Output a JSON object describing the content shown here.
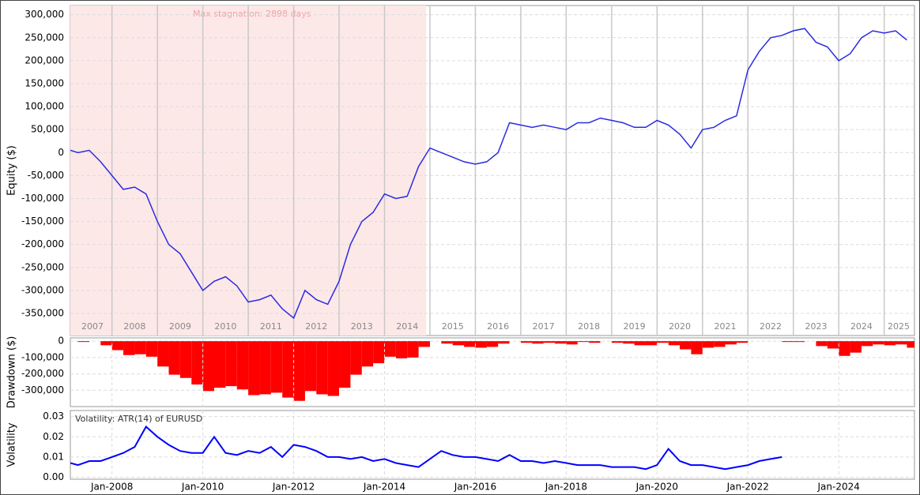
{
  "chart_data": [
    {
      "type": "line",
      "y_label": "Equity ($)",
      "color": "#2b2be0",
      "annotation": "Max stagnation: 2898 days",
      "stagnation_range": [
        "2007-02",
        "2014-12"
      ],
      "stagnation_color": "#fde8e8",
      "year_labels": [
        2007,
        2008,
        2009,
        2010,
        2011,
        2012,
        2013,
        2014,
        2015,
        2016,
        2017,
        2018,
        2019,
        2020,
        2021,
        2022,
        2023,
        2024,
        2025
      ],
      "xlim": [
        "2007-02",
        "2025-09"
      ],
      "ylim": [
        -398000,
        320000
      ],
      "grid": true,
      "yticks": [
        {
          "value": -350000,
          "label": "-350,000"
        },
        {
          "value": -300000,
          "label": "-300,000"
        },
        {
          "value": -250000,
          "label": "-250,000"
        },
        {
          "value": -200000,
          "label": "-200,000"
        },
        {
          "value": -150000,
          "label": "-150,000"
        },
        {
          "value": -100000,
          "label": "-100,000"
        },
        {
          "value": -50000,
          "label": "-50,000"
        },
        0,
        {
          "value": 50000,
          "label": "50,000"
        },
        {
          "value": 100000,
          "label": "100,000"
        },
        {
          "value": 150000,
          "label": "150,000"
        },
        {
          "value": 200000,
          "label": "200,000"
        },
        {
          "value": 250000,
          "label": "250,000"
        },
        {
          "value": 300000,
          "label": "300,000"
        }
      ],
      "x": [
        "2007-02",
        "2007-04",
        "2007-07",
        "2007-10",
        "2008-01",
        "2008-04",
        "2008-07",
        "2008-10",
        "2009-01",
        "2009-04",
        "2009-07",
        "2009-10",
        "2010-01",
        "2010-04",
        "2010-07",
        "2010-10",
        "2011-01",
        "2011-04",
        "2011-07",
        "2011-10",
        "2012-01",
        "2012-04",
        "2012-07",
        "2012-10",
        "2013-01",
        "2013-04",
        "2013-07",
        "2013-10",
        "2014-01",
        "2014-04",
        "2014-07",
        "2014-10",
        "2015-01",
        "2015-04",
        "2015-07",
        "2015-10",
        "2016-01",
        "2016-04",
        "2016-07",
        "2016-10",
        "2017-01",
        "2017-04",
        "2017-07",
        "2017-10",
        "2018-01",
        "2018-04",
        "2018-07",
        "2018-10",
        "2019-01",
        "2019-04",
        "2019-07",
        "2019-10",
        "2020-01",
        "2020-04",
        "2020-07",
        "2020-10",
        "2021-01",
        "2021-04",
        "2021-07",
        "2021-10",
        "2022-01",
        "2022-04",
        "2022-07",
        "2022-10",
        "2023-01",
        "2023-04",
        "2023-07",
        "2023-10",
        "2024-01",
        "2024-04",
        "2024-07",
        "2024-10",
        "2025-01",
        "2025-04",
        "2025-07"
      ],
      "values": [
        5000,
        0,
        5000,
        -20000,
        -50000,
        -80000,
        -75000,
        -90000,
        -150000,
        -200000,
        -220000,
        -260000,
        -300000,
        -280000,
        -270000,
        -290000,
        -325000,
        -320000,
        -310000,
        -340000,
        -360000,
        -300000,
        -320000,
        -330000,
        -280000,
        -200000,
        -150000,
        -130000,
        -90000,
        -100000,
        -95000,
        -30000,
        10000,
        0,
        -10000,
        -20000,
        -25000,
        -20000,
        0,
        65000,
        60000,
        55000,
        60000,
        55000,
        50000,
        65000,
        65000,
        75000,
        70000,
        65000,
        55000,
        55000,
        70000,
        60000,
        40000,
        10000,
        50000,
        55000,
        70000,
        80000,
        180000,
        220000,
        250000,
        255000,
        265000,
        270000,
        240000,
        230000,
        200000,
        215000,
        250000,
        265000,
        260000,
        265000,
        245000
      ]
    },
    {
      "type": "bar",
      "y_label": "Drawdown ($)",
      "color": "#ff0000",
      "xlim": [
        "2007-02",
        "2025-09"
      ],
      "ylim": [
        -400000,
        20000
      ],
      "grid": true,
      "yticks": [
        {
          "value": -300000,
          "label": "-300,000"
        },
        {
          "value": -200000,
          "label": "-200,000"
        },
        {
          "value": -100000,
          "label": "-100,000"
        },
        0
      ],
      "x": [
        "2007-02",
        "2007-04",
        "2007-07",
        "2007-10",
        "2008-01",
        "2008-04",
        "2008-07",
        "2008-10",
        "2009-01",
        "2009-04",
        "2009-07",
        "2009-10",
        "2010-01",
        "2010-04",
        "2010-07",
        "2010-10",
        "2011-01",
        "2011-04",
        "2011-07",
        "2011-10",
        "2012-01",
        "2012-04",
        "2012-07",
        "2012-10",
        "2013-01",
        "2013-04",
        "2013-07",
        "2013-10",
        "2014-01",
        "2014-04",
        "2014-07",
        "2014-10",
        "2015-01",
        "2015-04",
        "2015-07",
        "2015-10",
        "2016-01",
        "2016-04",
        "2016-07",
        "2016-10",
        "2017-01",
        "2017-04",
        "2017-07",
        "2017-10",
        "2018-01",
        "2018-04",
        "2018-07",
        "2018-10",
        "2019-01",
        "2019-04",
        "2019-07",
        "2019-10",
        "2020-01",
        "2020-04",
        "2020-07",
        "2020-10",
        "2021-01",
        "2021-04",
        "2021-07",
        "2021-10",
        "2022-01",
        "2022-04",
        "2022-07",
        "2022-10",
        "2023-01",
        "2023-04",
        "2023-07",
        "2023-10",
        "2024-01",
        "2024-04",
        "2024-07",
        "2024-10",
        "2025-01",
        "2025-04",
        "2025-07"
      ],
      "values": [
        0,
        -5000,
        0,
        -25000,
        -55000,
        -85000,
        -80000,
        -95000,
        -155000,
        -205000,
        -225000,
        -265000,
        -305000,
        -285000,
        -275000,
        -295000,
        -330000,
        -325000,
        -315000,
        -345000,
        -365000,
        -305000,
        -325000,
        -335000,
        -285000,
        -205000,
        -155000,
        -135000,
        -95000,
        -105000,
        -100000,
        -35000,
        0,
        -15000,
        -25000,
        -35000,
        -40000,
        -35000,
        -15000,
        0,
        -10000,
        -15000,
        -10000,
        -15000,
        -20000,
        -5000,
        -10000,
        0,
        -10000,
        -15000,
        -25000,
        -25000,
        -10000,
        -25000,
        -50000,
        -80000,
        -40000,
        -35000,
        -20000,
        -10000,
        0,
        0,
        0,
        -5000,
        -5000,
        0,
        -30000,
        -45000,
        -90000,
        -70000,
        -30000,
        -20000,
        -25000,
        -20000,
        -40000
      ]
    },
    {
      "type": "line",
      "y_label": "Volatility",
      "color": "#0000ff",
      "annotation": "Volatility: ATR(14) of EURUSD",
      "xlim": [
        "2007-02",
        "2025-09"
      ],
      "ylim": [
        -0.001,
        0.033
      ],
      "grid": true,
      "yticks": [
        {
          "value": 0,
          "label": "0.00"
        },
        {
          "value": 0.01,
          "label": "0.01"
        },
        {
          "value": 0.02,
          "label": "0.02"
        },
        {
          "value": 0.03,
          "label": "0.03"
        }
      ],
      "xticks": [
        {
          "value": "2008-01",
          "label": "Jan-2008"
        },
        {
          "value": "2010-01",
          "label": "Jan-2010"
        },
        {
          "value": "2012-01",
          "label": "Jan-2012"
        },
        {
          "value": "2014-01",
          "label": "Jan-2014"
        },
        {
          "value": "2016-01",
          "label": "Jan-2016"
        },
        {
          "value": "2018-01",
          "label": "Jan-2018"
        },
        {
          "value": "2020-01",
          "label": "Jan-2020"
        },
        {
          "value": "2022-01",
          "label": "Jan-2022"
        },
        {
          "value": "2024-01",
          "label": "Jan-2024"
        }
      ],
      "x": [
        "2007-02",
        "2007-04",
        "2007-07",
        "2007-10",
        "2008-01",
        "2008-04",
        "2008-07",
        "2008-10",
        "2009-01",
        "2009-04",
        "2009-07",
        "2009-10",
        "2010-01",
        "2010-04",
        "2010-07",
        "2010-10",
        "2011-01",
        "2011-04",
        "2011-07",
        "2011-10",
        "2012-01",
        "2012-04",
        "2012-07",
        "2012-10",
        "2013-01",
        "2013-04",
        "2013-07",
        "2013-10",
        "2014-01",
        "2014-04",
        "2014-07",
        "2014-10",
        "2015-04",
        "2015-07",
        "2015-10",
        "2016-01",
        "2016-04",
        "2016-07",
        "2016-10",
        "2017-01",
        "2017-04",
        "2017-07",
        "2017-10",
        "2018-01",
        "2018-04",
        "2018-07",
        "2018-10",
        "2019-01",
        "2019-04",
        "2019-07",
        "2019-10",
        "2020-01",
        "2020-04",
        "2020-07",
        "2020-10",
        "2021-01",
        "2021-04",
        "2021-07",
        "2021-10",
        "2022-01",
        "2022-04",
        "2022-07",
        "2022-10"
      ],
      "values": [
        0.007,
        0.006,
        0.008,
        0.008,
        0.01,
        0.012,
        0.015,
        0.025,
        0.02,
        0.016,
        0.013,
        0.012,
        0.012,
        0.02,
        0.012,
        0.011,
        0.013,
        0.012,
        0.015,
        0.01,
        0.016,
        0.015,
        0.013,
        0.01,
        0.01,
        0.009,
        0.01,
        0.008,
        0.009,
        0.007,
        0.006,
        0.005,
        0.013,
        0.011,
        0.01,
        0.01,
        0.009,
        0.008,
        0.011,
        0.008,
        0.008,
        0.007,
        0.008,
        0.007,
        0.006,
        0.006,
        0.006,
        0.005,
        0.005,
        0.005,
        0.004,
        0.006,
        0.014,
        0.008,
        0.006,
        0.006,
        0.005,
        0.004,
        0.005,
        0.006,
        0.008,
        0.009,
        0.01
      ]
    }
  ]
}
